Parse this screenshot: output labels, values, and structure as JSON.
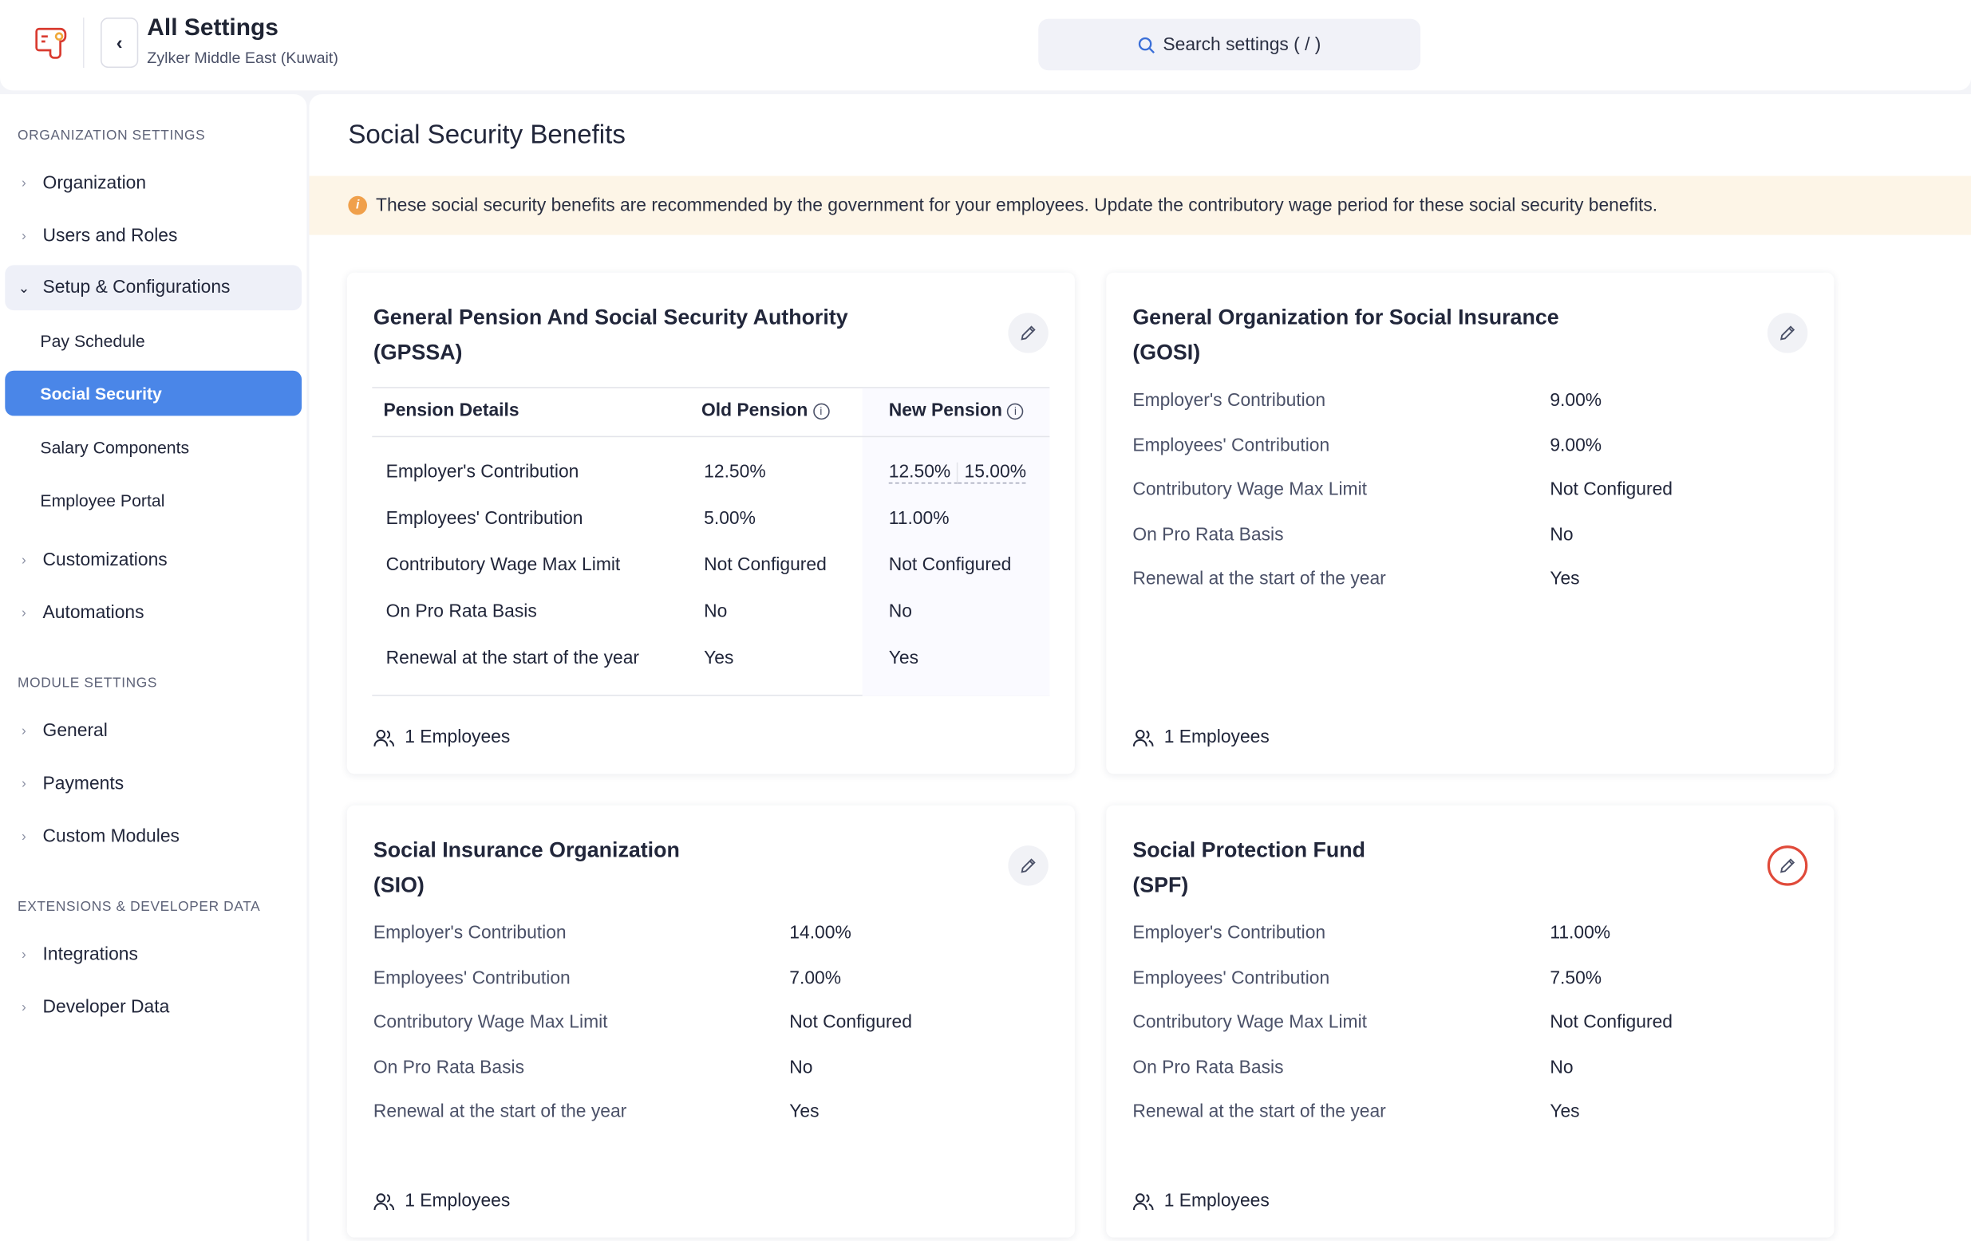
{
  "header": {
    "title": "All Settings",
    "subtitle": "Zylker Middle East (Kuwait)",
    "search_placeholder": "Search settings ( / )"
  },
  "sidebar": {
    "sections": [
      {
        "label": "Organization Settings"
      },
      {
        "label": "Module Settings"
      },
      {
        "label": "Extensions & Developer Data"
      }
    ],
    "items": [
      {
        "label": "Organization"
      },
      {
        "label": "Users and Roles"
      },
      {
        "label": "Setup & Configurations",
        "expanded": true
      },
      {
        "label": "Pay Schedule"
      },
      {
        "label": "Social Security",
        "active": true
      },
      {
        "label": "Salary Components"
      },
      {
        "label": "Employee Portal"
      },
      {
        "label": "Customizations"
      },
      {
        "label": "Automations"
      },
      {
        "label": "General"
      },
      {
        "label": "Payments"
      },
      {
        "label": "Custom Modules"
      },
      {
        "label": "Integrations"
      },
      {
        "label": "Developer Data"
      }
    ]
  },
  "main": {
    "title": "Social Security Benefits",
    "banner": "These social security benefits are recommended by the government for your employees. Update the contributory wage period for these social security benefits.",
    "gpssa": {
      "title1": "General Pension And Social Security Authority",
      "title2": "(GPSSA)",
      "headers": [
        "Pension Details",
        "Old Pension",
        "New Pension"
      ],
      "rows": [
        {
          "label": "Employer's Contribution",
          "old": "12.50%",
          "new_a": "12.50%",
          "new_b": "15.00%"
        },
        {
          "label": "Employees' Contribution",
          "old": "5.00%",
          "new_a": "11.00%"
        },
        {
          "label": "Contributory Wage Max Limit",
          "old": "Not Configured",
          "new_a": "Not Configured"
        },
        {
          "label": "On Pro Rata Basis",
          "old": "No",
          "new_a": "No"
        },
        {
          "label": "Renewal at the start of the year",
          "old": "Yes",
          "new_a": "Yes"
        }
      ],
      "employees": "1 Employees"
    },
    "gosi": {
      "title1": "General Organization for Social Insurance",
      "title2": "(GOSI)",
      "rows": [
        {
          "label": "Employer's Contribution",
          "value": "9.00%"
        },
        {
          "label": "Employees' Contribution",
          "value": "9.00%"
        },
        {
          "label": "Contributory Wage Max Limit",
          "value": "Not Configured"
        },
        {
          "label": "On Pro Rata Basis",
          "value": "No"
        },
        {
          "label": "Renewal at the start of the year",
          "value": "Yes"
        }
      ],
      "employees": "1 Employees"
    },
    "sio": {
      "title1": "Social Insurance Organization",
      "title2": "(SIO)",
      "rows": [
        {
          "label": "Employer's Contribution",
          "value": "14.00%"
        },
        {
          "label": "Employees' Contribution",
          "value": "7.00%"
        },
        {
          "label": "Contributory Wage Max Limit",
          "value": "Not Configured"
        },
        {
          "label": "On Pro Rata Basis",
          "value": "No"
        },
        {
          "label": "Renewal at the start of the year",
          "value": "Yes"
        }
      ],
      "employees": "1 Employees"
    },
    "spf": {
      "title1": "Social Protection Fund",
      "title2": "(SPF)",
      "rows": [
        {
          "label": "Employer's Contribution",
          "value": "11.00%"
        },
        {
          "label": "Employees' Contribution",
          "value": "7.50%"
        },
        {
          "label": "Contributory Wage Max Limit",
          "value": "Not Configured"
        },
        {
          "label": "On Pro Rata Basis",
          "value": "No"
        },
        {
          "label": "Renewal at the start of the year",
          "value": "Yes"
        }
      ],
      "employees": "1 Employees"
    }
  },
  "colors": {
    "accent": "#4a86e8",
    "banner_bg": "#fdf5e7",
    "info_icon": "#f0a04b",
    "logo": "#d93a2f",
    "highlight": "#e04a3a"
  }
}
